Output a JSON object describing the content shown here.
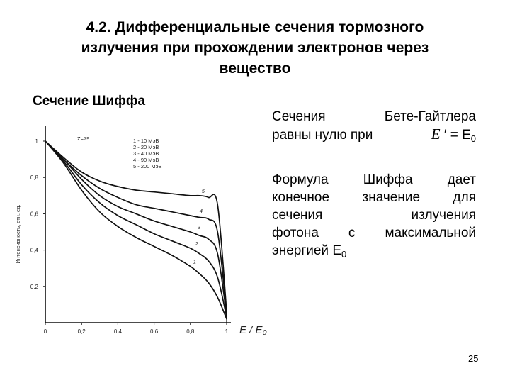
{
  "slide": {
    "title_lines": [
      "4.2. Дифференциальные сечения тормозного",
      "излучения при прохождении электронов через",
      "вещество"
    ],
    "subtitle": "Сечение Шиффа",
    "paragraph1": {
      "line1_words": [
        "Сечения",
        "Бете-Гайтлера"
      ],
      "line2_text": "равны нулю при",
      "line2_symbol": "E",
      "line2_prime": "′ = E",
      "line2_sub": "0"
    },
    "paragraph2": {
      "lines": [
        [
          "Формула",
          "Шиффа",
          "дает"
        ],
        [
          "конечное",
          "значение",
          "для"
        ],
        [
          "сечения",
          "излучения"
        ],
        [
          "фотона",
          "с",
          "максимальной"
        ]
      ],
      "last_line_text": "энергией E",
      "last_line_sub": "0"
    },
    "page_number": "25"
  },
  "chart_data": {
    "type": "line",
    "xlim": [
      0,
      1
    ],
    "ylim": [
      0,
      1
    ],
    "x_ticks": [
      "0",
      "0,2",
      "0,4",
      "0,6",
      "0,8",
      "1"
    ],
    "y_ticks": [
      "0,2",
      "0,4",
      "0,6",
      "0,8",
      "1"
    ],
    "y_tick_values": [
      0.2,
      0.4,
      0.6,
      0.8,
      1.0
    ],
    "xlabel": "E / E₀",
    "ylabel": "Интенсивность, отн. ед.",
    "annotation": "Z=79",
    "legend": [
      "1 - 10 МэВ",
      "2 - 20 МэВ",
      "3 - 40 МэВ",
      "4 - 90 МэВ",
      "5 - 200 МэВ"
    ],
    "series": [
      {
        "name": "1",
        "x": [
          0,
          0.1,
          0.2,
          0.3,
          0.4,
          0.5,
          0.6,
          0.7,
          0.8,
          0.85,
          0.9,
          0.95,
          1.0
        ],
        "y": [
          1.0,
          0.88,
          0.73,
          0.61,
          0.53,
          0.47,
          0.42,
          0.37,
          0.31,
          0.27,
          0.22,
          0.14,
          0.02
        ]
      },
      {
        "name": "2",
        "x": [
          0,
          0.1,
          0.2,
          0.3,
          0.4,
          0.5,
          0.6,
          0.7,
          0.8,
          0.85,
          0.9,
          0.95,
          1.0
        ],
        "y": [
          1.0,
          0.89,
          0.76,
          0.66,
          0.59,
          0.54,
          0.49,
          0.45,
          0.41,
          0.38,
          0.34,
          0.25,
          0.03
        ]
      },
      {
        "name": "3",
        "x": [
          0,
          0.1,
          0.2,
          0.3,
          0.4,
          0.5,
          0.6,
          0.7,
          0.8,
          0.85,
          0.9,
          0.95,
          1.0
        ],
        "y": [
          1.0,
          0.9,
          0.79,
          0.7,
          0.64,
          0.6,
          0.56,
          0.53,
          0.5,
          0.48,
          0.46,
          0.38,
          0.04
        ]
      },
      {
        "name": "4",
        "x": [
          0,
          0.1,
          0.2,
          0.3,
          0.4,
          0.5,
          0.6,
          0.7,
          0.8,
          0.85,
          0.9,
          0.95,
          1.0
        ],
        "y": [
          1.0,
          0.9,
          0.81,
          0.74,
          0.69,
          0.65,
          0.63,
          0.61,
          0.59,
          0.58,
          0.57,
          0.5,
          0.05
        ]
      },
      {
        "name": "5",
        "x": [
          0,
          0.1,
          0.2,
          0.3,
          0.4,
          0.5,
          0.6,
          0.7,
          0.8,
          0.85,
          0.9,
          0.95,
          1.0
        ],
        "y": [
          1.0,
          0.91,
          0.83,
          0.78,
          0.75,
          0.73,
          0.72,
          0.71,
          0.7,
          0.7,
          0.69,
          0.65,
          0.06
        ]
      }
    ]
  }
}
